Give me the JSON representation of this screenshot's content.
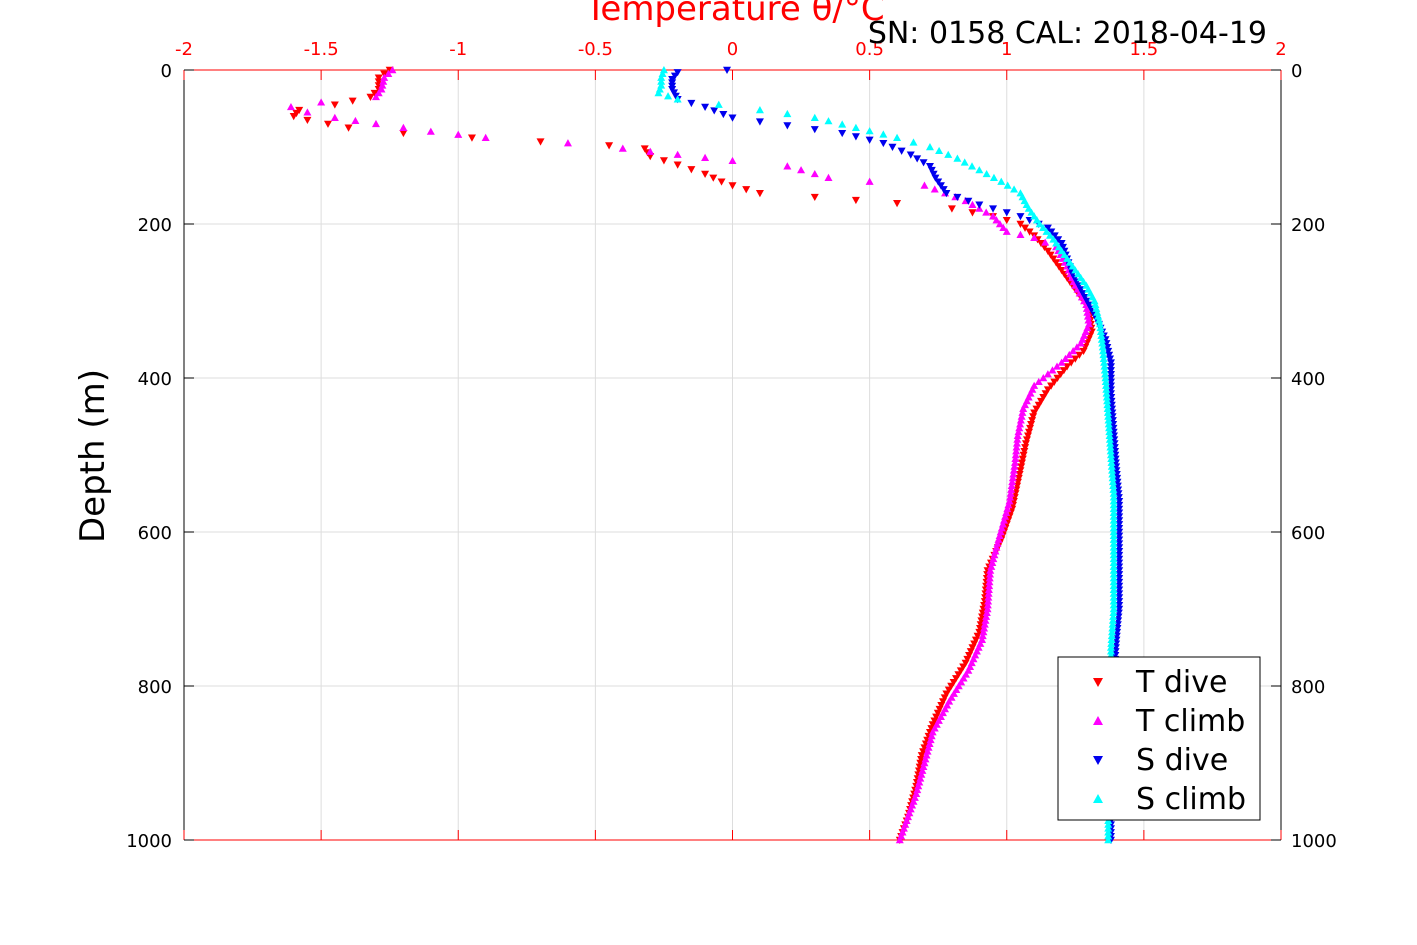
{
  "chart_data": {
    "type": "scatter",
    "title": "Temperature θ/°C",
    "subtitle": "SN: 0158  CAL: 2018-04-19",
    "xlabel": "Temperature θ/°C",
    "ylabel": "Depth (m)",
    "xlim": [
      -2,
      2
    ],
    "ylim": [
      0,
      1000
    ],
    "y_reversed": true,
    "x_ticks": [
      "-2",
      "-1.5",
      "-1",
      "-0.5",
      "0",
      "0.5",
      "1",
      "1.5",
      "2"
    ],
    "y_ticks": [
      "0",
      "200",
      "400",
      "600",
      "800",
      "1000"
    ],
    "grid": true,
    "legend_position": "bottom-right",
    "series": [
      {
        "name": "T dive",
        "color": "#ff0000",
        "marker": "triangle-down",
        "points": [
          [
            -1.25,
            0
          ],
          [
            -1.29,
            10
          ],
          [
            -1.29,
            25
          ],
          [
            -1.32,
            35
          ],
          [
            -1.45,
            45
          ],
          [
            -1.58,
            52
          ],
          [
            -1.6,
            60
          ],
          [
            -1.55,
            65
          ],
          [
            -1.4,
            75
          ],
          [
            -1.2,
            82
          ],
          [
            -0.95,
            88
          ],
          [
            -0.7,
            93
          ],
          [
            -0.45,
            98
          ],
          [
            -0.32,
            102
          ],
          [
            -0.3,
            112
          ],
          [
            -0.2,
            123
          ],
          [
            -0.1,
            135
          ],
          [
            -0.04,
            145
          ],
          [
            0.0,
            150
          ],
          [
            0.1,
            160
          ],
          [
            0.3,
            165
          ],
          [
            0.6,
            173
          ],
          [
            0.8,
            180
          ],
          [
            0.95,
            190
          ],
          [
            1.05,
            200
          ],
          [
            1.1,
            215
          ],
          [
            1.15,
            235
          ],
          [
            1.2,
            260
          ],
          [
            1.25,
            285
          ],
          [
            1.3,
            310
          ],
          [
            1.31,
            340
          ],
          [
            1.28,
            365
          ],
          [
            1.22,
            385
          ],
          [
            1.15,
            415
          ],
          [
            1.1,
            445
          ],
          [
            1.07,
            485
          ],
          [
            1.05,
            520
          ],
          [
            1.02,
            570
          ],
          [
            0.98,
            610
          ],
          [
            0.93,
            650
          ],
          [
            0.92,
            690
          ],
          [
            0.9,
            730
          ],
          [
            0.85,
            770
          ],
          [
            0.78,
            810
          ],
          [
            0.73,
            850
          ],
          [
            0.69,
            890
          ],
          [
            0.67,
            930
          ],
          [
            0.64,
            970
          ],
          [
            0.61,
            1000
          ]
        ]
      },
      {
        "name": "T climb",
        "color": "#ff00ff",
        "marker": "triangle-up",
        "points": [
          [
            -1.24,
            0
          ],
          [
            -1.27,
            10
          ],
          [
            -1.28,
            25
          ],
          [
            -1.3,
            35
          ],
          [
            -1.5,
            42
          ],
          [
            -1.61,
            48
          ],
          [
            -1.55,
            55
          ],
          [
            -1.45,
            62
          ],
          [
            -1.3,
            70
          ],
          [
            -1.1,
            80
          ],
          [
            -0.9,
            88
          ],
          [
            -0.6,
            95
          ],
          [
            -0.4,
            102
          ],
          [
            -0.2,
            110
          ],
          [
            0.0,
            118
          ],
          [
            0.2,
            125
          ],
          [
            0.35,
            140
          ],
          [
            0.5,
            145
          ],
          [
            0.7,
            150
          ],
          [
            0.85,
            170
          ],
          [
            0.95,
            190
          ],
          [
            1.0,
            210
          ],
          [
            1.1,
            218
          ],
          [
            1.18,
            230
          ],
          [
            1.22,
            255
          ],
          [
            1.25,
            280
          ],
          [
            1.29,
            305
          ],
          [
            1.3,
            330
          ],
          [
            1.27,
            355
          ],
          [
            1.2,
            380
          ],
          [
            1.1,
            410
          ],
          [
            1.06,
            440
          ],
          [
            1.04,
            475
          ],
          [
            1.03,
            510
          ],
          [
            1.01,
            560
          ],
          [
            0.97,
            610
          ],
          [
            0.94,
            650
          ],
          [
            0.93,
            700
          ],
          [
            0.91,
            740
          ],
          [
            0.86,
            780
          ],
          [
            0.79,
            820
          ],
          [
            0.73,
            860
          ],
          [
            0.7,
            900
          ],
          [
            0.67,
            940
          ],
          [
            0.63,
            980
          ],
          [
            0.61,
            1000
          ]
        ]
      },
      {
        "name": "S dive",
        "color": "#0000ee",
        "marker": "triangle-down",
        "points": [
          [
            -0.02,
            0
          ],
          [
            -0.2,
            3
          ],
          [
            -0.22,
            12
          ],
          [
            -0.22,
            25
          ],
          [
            -0.2,
            38
          ],
          [
            -0.1,
            48
          ],
          [
            0.0,
            62
          ],
          [
            0.2,
            72
          ],
          [
            0.4,
            82
          ],
          [
            0.55,
            95
          ],
          [
            0.65,
            110
          ],
          [
            0.72,
            125
          ],
          [
            0.74,
            140
          ],
          [
            0.78,
            160
          ],
          [
            0.9,
            175
          ],
          [
            1.05,
            190
          ],
          [
            1.15,
            205
          ],
          [
            1.2,
            225
          ],
          [
            1.22,
            245
          ],
          [
            1.24,
            265
          ],
          [
            1.27,
            285
          ],
          [
            1.3,
            305
          ],
          [
            1.33,
            325
          ],
          [
            1.36,
            350
          ],
          [
            1.38,
            380
          ],
          [
            1.38,
            420
          ],
          [
            1.39,
            470
          ],
          [
            1.4,
            520
          ],
          [
            1.41,
            560
          ],
          [
            1.41,
            600
          ],
          [
            1.41,
            650
          ],
          [
            1.41,
            700
          ],
          [
            1.4,
            740
          ],
          [
            1.39,
            790
          ],
          [
            1.38,
            850
          ],
          [
            1.38,
            900
          ],
          [
            1.38,
            950
          ],
          [
            1.38,
            1000
          ]
        ]
      },
      {
        "name": "S climb",
        "color": "#00ffff",
        "marker": "triangle-up",
        "points": [
          [
            -0.25,
            0
          ],
          [
            -0.26,
            10
          ],
          [
            -0.26,
            20
          ],
          [
            -0.27,
            30
          ],
          [
            -0.2,
            38
          ],
          [
            -0.05,
            45
          ],
          [
            0.1,
            52
          ],
          [
            0.3,
            62
          ],
          [
            0.45,
            75
          ],
          [
            0.6,
            88
          ],
          [
            0.72,
            100
          ],
          [
            0.82,
            115
          ],
          [
            0.9,
            130
          ],
          [
            0.98,
            145
          ],
          [
            1.05,
            160
          ],
          [
            1.08,
            180
          ],
          [
            1.12,
            200
          ],
          [
            1.17,
            220
          ],
          [
            1.21,
            240
          ],
          [
            1.25,
            260
          ],
          [
            1.29,
            280
          ],
          [
            1.32,
            300
          ],
          [
            1.34,
            330
          ],
          [
            1.35,
            360
          ],
          [
            1.36,
            400
          ],
          [
            1.37,
            450
          ],
          [
            1.38,
            500
          ],
          [
            1.39,
            550
          ],
          [
            1.39,
            600
          ],
          [
            1.39,
            650
          ],
          [
            1.39,
            700
          ],
          [
            1.38,
            750
          ],
          [
            1.38,
            800
          ],
          [
            1.37,
            850
          ],
          [
            1.37,
            900
          ],
          [
            1.37,
            950
          ],
          [
            1.37,
            1000
          ]
        ]
      }
    ]
  }
}
